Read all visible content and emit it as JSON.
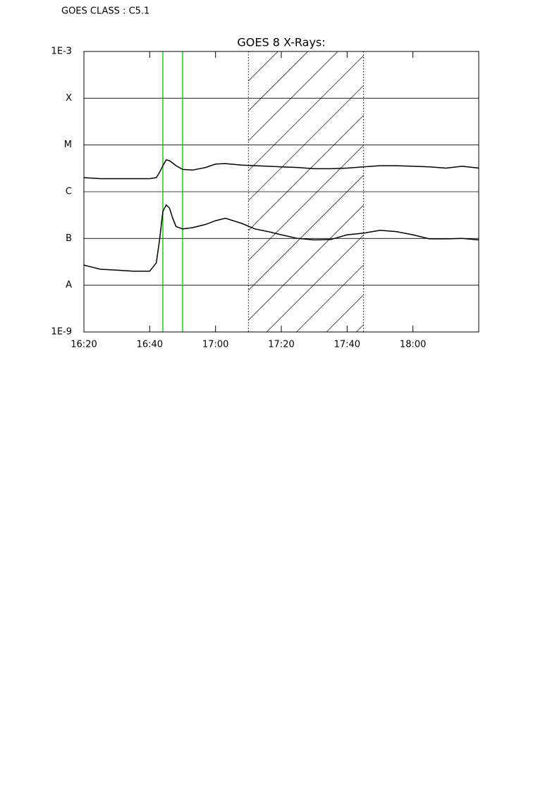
{
  "header": "GOES CLASS : C5.1",
  "chart_data": {
    "type": "line",
    "title": "GOES 8 X-Rays:",
    "log_y": true,
    "grid": true,
    "x": [
      "16:20",
      "16:25",
      "16:30",
      "16:35",
      "16:40",
      "16:42",
      "16:43",
      "16:44",
      "16:45",
      "16:46",
      "16:47",
      "16:48",
      "16:50",
      "16:53",
      "16:57",
      "17:00",
      "17:03",
      "17:08",
      "17:12",
      "17:16",
      "17:20",
      "17:25",
      "17:30",
      "17:35",
      "17:40",
      "17:45",
      "17:50",
      "17:55",
      "18:00",
      "18:05",
      "18:10",
      "18:15",
      "18:20"
    ],
    "series": [
      {
        "color": "#000000",
        "values": [
          2e-06,
          1.9e-06,
          1.9e-06,
          1.9e-06,
          1.9e-06,
          2e-06,
          2.6e-06,
          3.6e-06,
          4.8e-06,
          4.6e-06,
          4.1e-06,
          3.6e-06,
          3e-06,
          2.9e-06,
          3.3e-06,
          3.9e-06,
          4e-06,
          3.7e-06,
          3.6e-06,
          3.5e-06,
          3.4e-06,
          3.3e-06,
          3.1e-06,
          3.1e-06,
          3.2e-06,
          3.4e-06,
          3.6e-06,
          3.6e-06,
          3.5e-06,
          3.4e-06,
          3.2e-06,
          3.5e-06,
          3.2e-06
        ]
      },
      {
        "color": "#000000",
        "values": [
          2.7e-08,
          2.2e-08,
          2.1e-08,
          2e-08,
          2e-08,
          3e-08,
          9.3e-08,
          3.8e-07,
          5.2e-07,
          4.5e-07,
          2.7e-07,
          1.8e-07,
          1.6e-07,
          1.7e-07,
          2e-07,
          2.4e-07,
          2.7e-07,
          2.1e-07,
          1.6e-07,
          1.4e-07,
          1.2e-07,
          1e-07,
          9.3e-08,
          9.5e-08,
          1.2e-07,
          1.3e-07,
          1.5e-07,
          1.4e-07,
          1.2e-07,
          9.8e-08,
          9.8e-08,
          1e-07,
          9.3e-08
        ]
      }
    ],
    "xlim": [
      "16:20",
      "18:20"
    ],
    "xticks": [
      "16:20",
      "16:40",
      "17:00",
      "17:20",
      "17:40",
      "18:00"
    ],
    "ylim": [
      1e-09,
      0.001
    ],
    "yticks": [
      {
        "value": 1e-09,
        "label": "1E-9"
      },
      {
        "value": 1e-08,
        "label": "A"
      },
      {
        "value": 1e-07,
        "label": "B"
      },
      {
        "value": 1e-06,
        "label": "C"
      },
      {
        "value": 1e-05,
        "label": "M"
      },
      {
        "value": 0.0001,
        "label": "X"
      },
      {
        "value": 0.001,
        "label": "1E-3"
      }
    ],
    "markers": {
      "color": "#00c000",
      "x": [
        "16:44",
        "16:50"
      ]
    },
    "hatched_range": [
      "17:10",
      "17:45"
    ]
  }
}
